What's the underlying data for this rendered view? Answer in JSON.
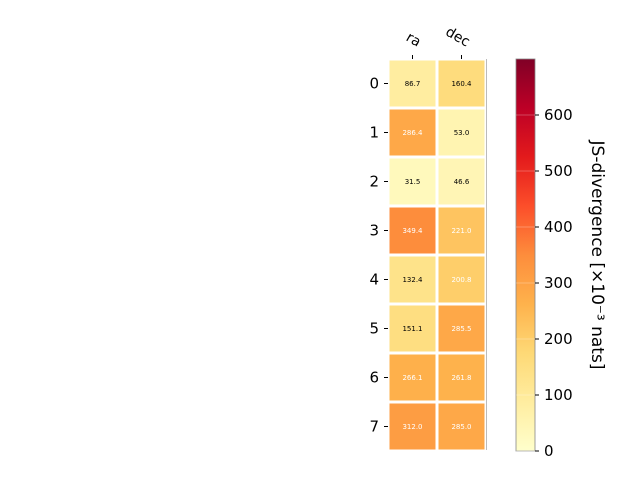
{
  "chart_data": {
    "type": "heatmap",
    "columns": [
      "ra",
      "dec"
    ],
    "rows": [
      "0",
      "1",
      "2",
      "3",
      "4",
      "5",
      "6",
      "7"
    ],
    "values": [
      [
        86.7,
        160.4
      ],
      [
        286.4,
        53.0
      ],
      [
        31.5,
        46.6
      ],
      [
        349.4,
        221.0
      ],
      [
        132.4,
        200.8
      ],
      [
        151.1,
        285.5
      ],
      [
        266.1,
        261.8
      ],
      [
        312.0,
        285.0
      ]
    ],
    "value_labels": [
      [
        "86.7",
        "160.4"
      ],
      [
        "286.4",
        "53.0"
      ],
      [
        "31.5",
        "46.6"
      ],
      [
        "349.4",
        "221.0"
      ],
      [
        "132.4",
        "200.8"
      ],
      [
        "151.1",
        "285.5"
      ],
      [
        "266.1",
        "261.8"
      ],
      [
        "312.0",
        "285.0"
      ]
    ],
    "colorbar": {
      "label": "JS-divergence [×10⁻³ nats]",
      "range": [
        0,
        700
      ],
      "ticks": [
        "0",
        "100",
        "200",
        "300",
        "400",
        "500",
        "600"
      ],
      "colormap": "YlOrRd"
    },
    "x_tick_position": "top",
    "grid": false
  }
}
